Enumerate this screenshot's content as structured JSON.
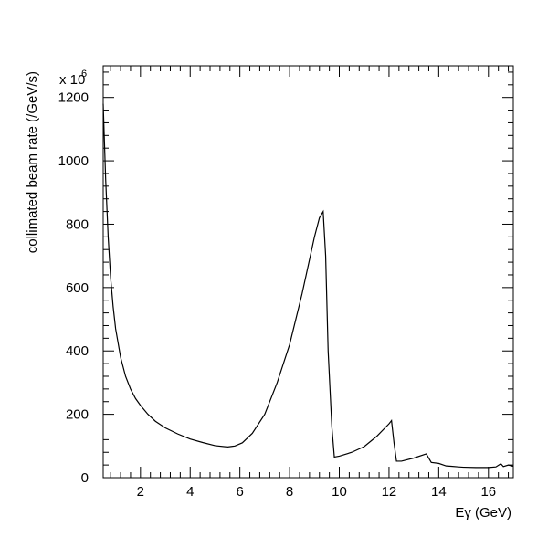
{
  "chart_data": {
    "type": "line",
    "xlabel": "Eγ (GeV)",
    "ylabel": "collimated beam rate (/GeV/s)",
    "y_multiplier_label": "x 10",
    "y_multiplier_exponent": "6",
    "xlim": [
      0.5,
      17
    ],
    "ylim": [
      0,
      1300
    ],
    "x_ticks": [
      2,
      4,
      6,
      8,
      10,
      12,
      14,
      16
    ],
    "y_ticks": [
      0,
      200,
      400,
      600,
      800,
      1000,
      1200
    ],
    "grid": false,
    "legend": "none",
    "series": [
      {
        "x": [
          0.5,
          0.55,
          0.6,
          0.7,
          0.8,
          0.9,
          1.0,
          1.2,
          1.4,
          1.6,
          1.8,
          2.0,
          2.3,
          2.6,
          3.0,
          3.5,
          4.0,
          4.5,
          5.0,
          5.5,
          5.8,
          6.1,
          6.5,
          7.0,
          7.5,
          8.0,
          8.5,
          9.0,
          9.2,
          9.35,
          9.45,
          9.55,
          9.7,
          9.8,
          10.0,
          10.5,
          11.0,
          11.5,
          12.0,
          12.1,
          12.2,
          12.3,
          12.5,
          13.0,
          13.5,
          13.7,
          14.0,
          14.3,
          14.5,
          14.8,
          15.0,
          15.5,
          16.0,
          16.3,
          16.5,
          16.6,
          16.8,
          17.0
        ],
        "y": [
          1180,
          1060,
          940,
          760,
          630,
          540,
          470,
          380,
          320,
          280,
          250,
          228,
          200,
          178,
          157,
          138,
          122,
          111,
          101,
          97,
          100,
          110,
          140,
          200,
          300,
          420,
          580,
          760,
          820,
          840,
          700,
          400,
          160,
          65,
          68,
          80,
          98,
          130,
          170,
          180,
          110,
          52,
          52,
          62,
          75,
          48,
          45,
          37,
          36,
          34,
          33,
          32,
          32,
          34,
          44,
          35,
          40,
          36
        ]
      }
    ]
  }
}
